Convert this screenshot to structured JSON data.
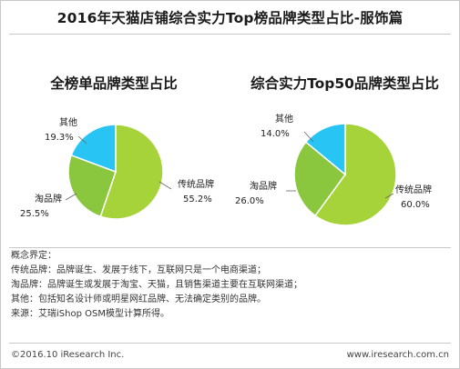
{
  "title": "2016年天猫店铺综合实力Top榜品牌类型占比-服饰篇",
  "colors": {
    "yellow_green": "#8cc63f",
    "green": "#8cc63f",
    "cyan": "#27c4f4",
    "light_green": "#a6d33a",
    "mid_green": "#8bc63f"
  },
  "chart_data": [
    {
      "type": "pie",
      "title": "全榜单品牌类型占比",
      "slices": [
        {
          "label": "传统品牌",
          "value": 55.2,
          "value_text": "55.2%",
          "color": "#a6d33a"
        },
        {
          "label": "淘品牌",
          "value": 25.5,
          "value_text": "25.5%",
          "color": "#8bc63f"
        },
        {
          "label": "其他",
          "value": 19.3,
          "value_text": "19.3%",
          "color": "#27c4f4"
        }
      ]
    },
    {
      "type": "pie",
      "title": "综合实力Top50品牌类型占比",
      "slices": [
        {
          "label": "传统品牌",
          "value": 60.0,
          "value_text": "60.0%",
          "color": "#a6d33a"
        },
        {
          "label": "淘品牌",
          "value": 26.0,
          "value_text": "26.0%",
          "color": "#8bc63f"
        },
        {
          "label": "其他",
          "value": 14.0,
          "value_text": "14.0%",
          "color": "#27c4f4"
        }
      ]
    }
  ],
  "notes": [
    "概念界定：",
    "传统品牌：品牌诞生、发展于线下，互联网只是一个电商渠道；",
    "淘品牌：品牌诞生或发展于淘宝、天猫，且销售渠道主要在互联网渠道；",
    "其他：包括知名设计师或明星网红品牌、无法确定类别的品牌。",
    "来源：艾瑞iShop OSM模型计算所得。"
  ],
  "footer": {
    "copyright": "©2016.10 iResearch Inc.",
    "website": "www.iresearch.com.cn"
  }
}
